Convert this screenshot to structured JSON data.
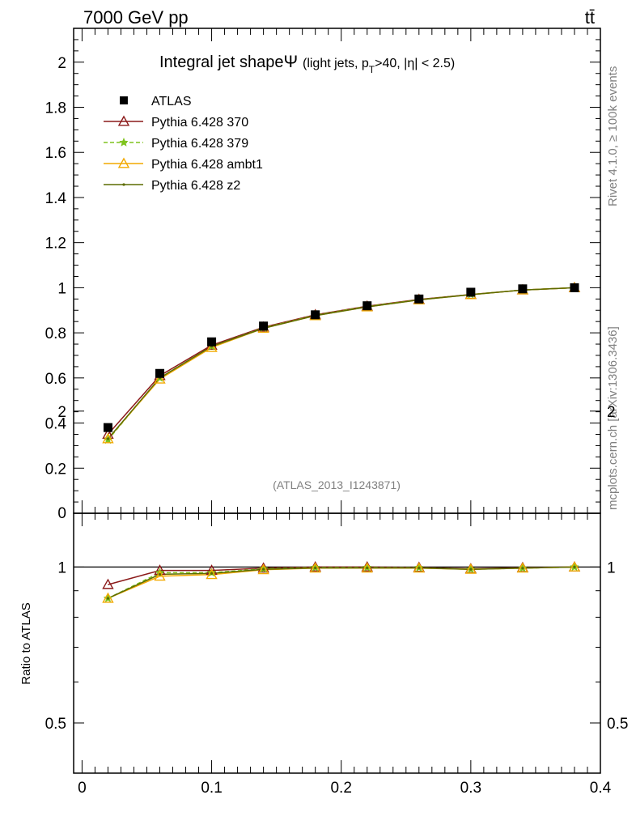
{
  "header": {
    "energy_label": "7000 GeV pp",
    "process_label": "tt̄",
    "rivet_label": "Rivet 4.1.0, ≥ 100k events",
    "mcplots_label": "mcplots.cern.ch [arXiv:1306.3436]"
  },
  "chart_data": {
    "type": "line",
    "title_main": "Integral jet shape",
    "title_symbol": "Ψ",
    "title_cond_a": "(light jets, p",
    "title_cond_sub": "T",
    "title_cond_b": ">40, |η| < 2.5)",
    "analysis_id": "(ATLAS_2013_I1243871)",
    "ratio_ylabel": "Ratio to ATLAS",
    "xlim": [
      -0.0065,
      0.4
    ],
    "ylim_main": [
      0,
      2.15
    ],
    "ylim_ratio": [
      0.4,
      1.27
    ],
    "x_ticks": [
      "0",
      "0.1",
      "0.2",
      "0.3",
      "0.4"
    ],
    "y_ticks_main": [
      "0.2",
      "0.4",
      "0.6",
      "0.8",
      "1",
      "1.2",
      "1.4",
      "1.6",
      "1.8",
      "2"
    ],
    "y_tick_main_zero": "0",
    "y_ticks_ratio": [
      "0.5",
      "1",
      "2"
    ],
    "x": [
      0.02,
      0.06,
      0.1,
      0.14,
      0.18,
      0.22,
      0.26,
      0.3,
      0.34,
      0.38
    ],
    "data": {
      "name": "ATLAS",
      "values": [
        0.38,
        0.62,
        0.76,
        0.83,
        0.88,
        0.92,
        0.95,
        0.98,
        0.995,
        1.0
      ]
    },
    "series": [
      {
        "name": "Pythia 6.428 370",
        "color": "#8b1a1a",
        "marker": "triangle-open",
        "dash": "solid",
        "values": [
          0.35,
          0.61,
          0.745,
          0.825,
          0.88,
          0.918,
          0.948,
          0.97,
          0.99,
          1.0
        ]
      },
      {
        "name": "Pythia 6.428 379",
        "color": "#7fc41e",
        "marker": "star",
        "dash": "dashed",
        "values": [
          0.325,
          0.6,
          0.74,
          0.822,
          0.878,
          0.917,
          0.947,
          0.97,
          0.99,
          1.0
        ]
      },
      {
        "name": "Pythia 6.428 ambt1",
        "color": "#f2a900",
        "marker": "triangle-open",
        "dash": "solid",
        "values": [
          0.33,
          0.595,
          0.735,
          0.82,
          0.876,
          0.915,
          0.946,
          0.969,
          0.99,
          1.0
        ]
      },
      {
        "name": "Pythia 6.428 z2",
        "color": "#5c6b00",
        "marker": "dot",
        "dash": "solid",
        "values": [
          0.33,
          0.6,
          0.74,
          0.82,
          0.876,
          0.915,
          0.946,
          0.969,
          0.99,
          1.0
        ]
      }
    ],
    "ratio": {
      "reference": 1,
      "series": [
        {
          "name": "Pythia 6.428 370",
          "values": [
            0.925,
            0.985,
            0.985,
            0.995,
            1.0,
            1.0,
            0.998,
            0.992,
            0.997,
            1.0
          ]
        },
        {
          "name": "Pythia 6.428 379",
          "values": [
            0.87,
            0.975,
            0.975,
            0.992,
            0.998,
            0.998,
            0.997,
            0.99,
            0.995,
            1.0
          ]
        },
        {
          "name": "Pythia 6.428 ambt1",
          "values": [
            0.87,
            0.96,
            0.967,
            0.988,
            0.995,
            0.995,
            0.995,
            0.99,
            0.995,
            1.0
          ]
        },
        {
          "name": "Pythia 6.428 z2",
          "values": [
            0.87,
            0.968,
            0.972,
            0.99,
            0.996,
            0.996,
            0.996,
            0.99,
            0.995,
            1.0
          ]
        }
      ]
    }
  }
}
